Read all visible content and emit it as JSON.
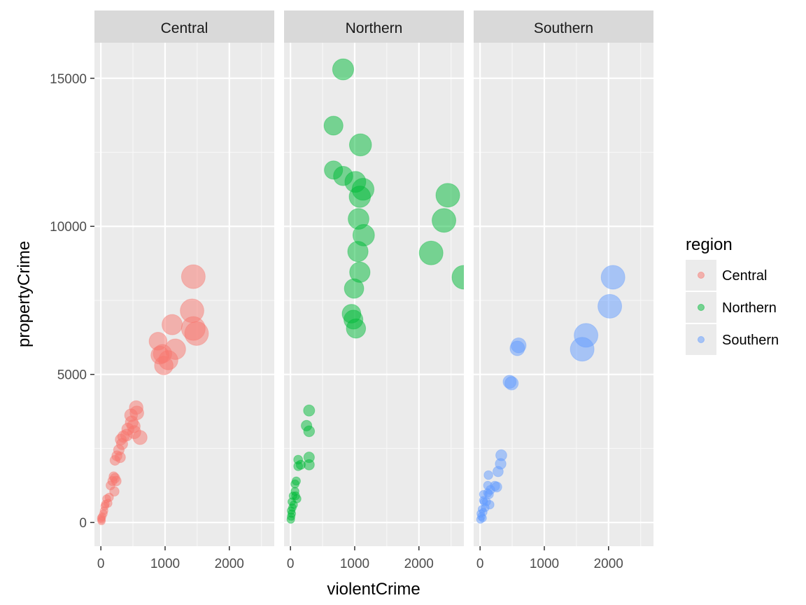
{
  "chart_data": {
    "type": "scatter",
    "xlabel": "violentCrime",
    "ylabel": "propertyCrime",
    "xlim": [
      -100,
      2700
    ],
    "ylim": [
      -800,
      16200
    ],
    "x_ticks": [
      0,
      1000,
      2000
    ],
    "y_ticks": [
      0,
      5000,
      10000,
      15000
    ],
    "grid": true,
    "facets": [
      "Central",
      "Northern",
      "Southern"
    ],
    "legend": {
      "title": "region",
      "position": "right",
      "entries": [
        {
          "label": "Central",
          "color": "#F8766D"
        },
        {
          "label": "Northern",
          "color": "#00BA38"
        },
        {
          "label": "Southern",
          "color": "#619CFF"
        }
      ]
    },
    "series": [
      {
        "name": "Central",
        "color": "#F8766D",
        "points": [
          [
            1440,
            8300
          ],
          [
            1420,
            7150
          ],
          [
            1440,
            6550
          ],
          [
            1490,
            6380
          ],
          [
            1110,
            6680
          ],
          [
            1160,
            5850
          ],
          [
            890,
            6120
          ],
          [
            920,
            5650
          ],
          [
            960,
            5700
          ],
          [
            1050,
            5480
          ],
          [
            980,
            5300
          ],
          [
            550,
            3880
          ],
          [
            560,
            3700
          ],
          [
            470,
            3620
          ],
          [
            480,
            3380
          ],
          [
            510,
            3250
          ],
          [
            420,
            3150
          ],
          [
            520,
            3050
          ],
          [
            400,
            2950
          ],
          [
            350,
            2900
          ],
          [
            310,
            2800
          ],
          [
            330,
            2650
          ],
          [
            280,
            2450
          ],
          [
            610,
            2870
          ],
          [
            300,
            2200
          ],
          [
            250,
            2250
          ],
          [
            220,
            2100
          ],
          [
            200,
            1550
          ],
          [
            220,
            1500
          ],
          [
            240,
            1400
          ],
          [
            180,
            1400
          ],
          [
            150,
            1250
          ],
          [
            210,
            1050
          ],
          [
            130,
            850
          ],
          [
            90,
            800
          ],
          [
            110,
            650
          ],
          [
            70,
            620
          ],
          [
            60,
            550
          ],
          [
            50,
            400
          ],
          [
            40,
            300
          ],
          [
            20,
            200
          ],
          [
            10,
            100
          ],
          [
            10,
            50
          ],
          [
            5,
            150
          ]
        ]
      },
      {
        "name": "Northern",
        "color": "#00BA38",
        "points": [
          [
            820,
            15300
          ],
          [
            670,
            13400
          ],
          [
            1090,
            12750
          ],
          [
            670,
            11900
          ],
          [
            820,
            11700
          ],
          [
            1010,
            11500
          ],
          [
            1130,
            11250
          ],
          [
            1080,
            11000
          ],
          [
            1060,
            10250
          ],
          [
            1140,
            9700
          ],
          [
            1050,
            9150
          ],
          [
            1080,
            8450
          ],
          [
            990,
            7900
          ],
          [
            950,
            7050
          ],
          [
            980,
            6850
          ],
          [
            1020,
            6550
          ],
          [
            2450,
            11050
          ],
          [
            2390,
            10200
          ],
          [
            2190,
            9100
          ],
          [
            2700,
            8280
          ],
          [
            290,
            3780
          ],
          [
            250,
            3270
          ],
          [
            290,
            3080
          ],
          [
            290,
            2200
          ],
          [
            120,
            2120
          ],
          [
            290,
            1950
          ],
          [
            160,
            1950
          ],
          [
            120,
            1900
          ],
          [
            90,
            1400
          ],
          [
            70,
            1300
          ],
          [
            70,
            1050
          ],
          [
            80,
            900
          ],
          [
            40,
            900
          ],
          [
            100,
            800
          ],
          [
            20,
            700
          ],
          [
            50,
            600
          ],
          [
            30,
            500
          ],
          [
            10,
            400
          ],
          [
            20,
            300
          ],
          [
            10,
            200
          ],
          [
            5,
            100
          ]
        ]
      },
      {
        "name": "Southern",
        "color": "#619CFF",
        "points": [
          [
            2070,
            8280
          ],
          [
            2020,
            7300
          ],
          [
            1650,
            6320
          ],
          [
            1590,
            5850
          ],
          [
            600,
            5980
          ],
          [
            580,
            5880
          ],
          [
            460,
            4750
          ],
          [
            490,
            4700
          ],
          [
            330,
            2270
          ],
          [
            320,
            1980
          ],
          [
            280,
            1720
          ],
          [
            130,
            1600
          ],
          [
            230,
            1230
          ],
          [
            260,
            1200
          ],
          [
            120,
            1250
          ],
          [
            160,
            1100
          ],
          [
            120,
            1000
          ],
          [
            50,
            950
          ],
          [
            140,
            950
          ],
          [
            50,
            750
          ],
          [
            60,
            700
          ],
          [
            100,
            700
          ],
          [
            150,
            600
          ],
          [
            80,
            500
          ],
          [
            30,
            450
          ],
          [
            50,
            350
          ],
          [
            10,
            300
          ],
          [
            20,
            200
          ],
          [
            5,
            100
          ],
          [
            40,
            150
          ]
        ]
      }
    ]
  }
}
